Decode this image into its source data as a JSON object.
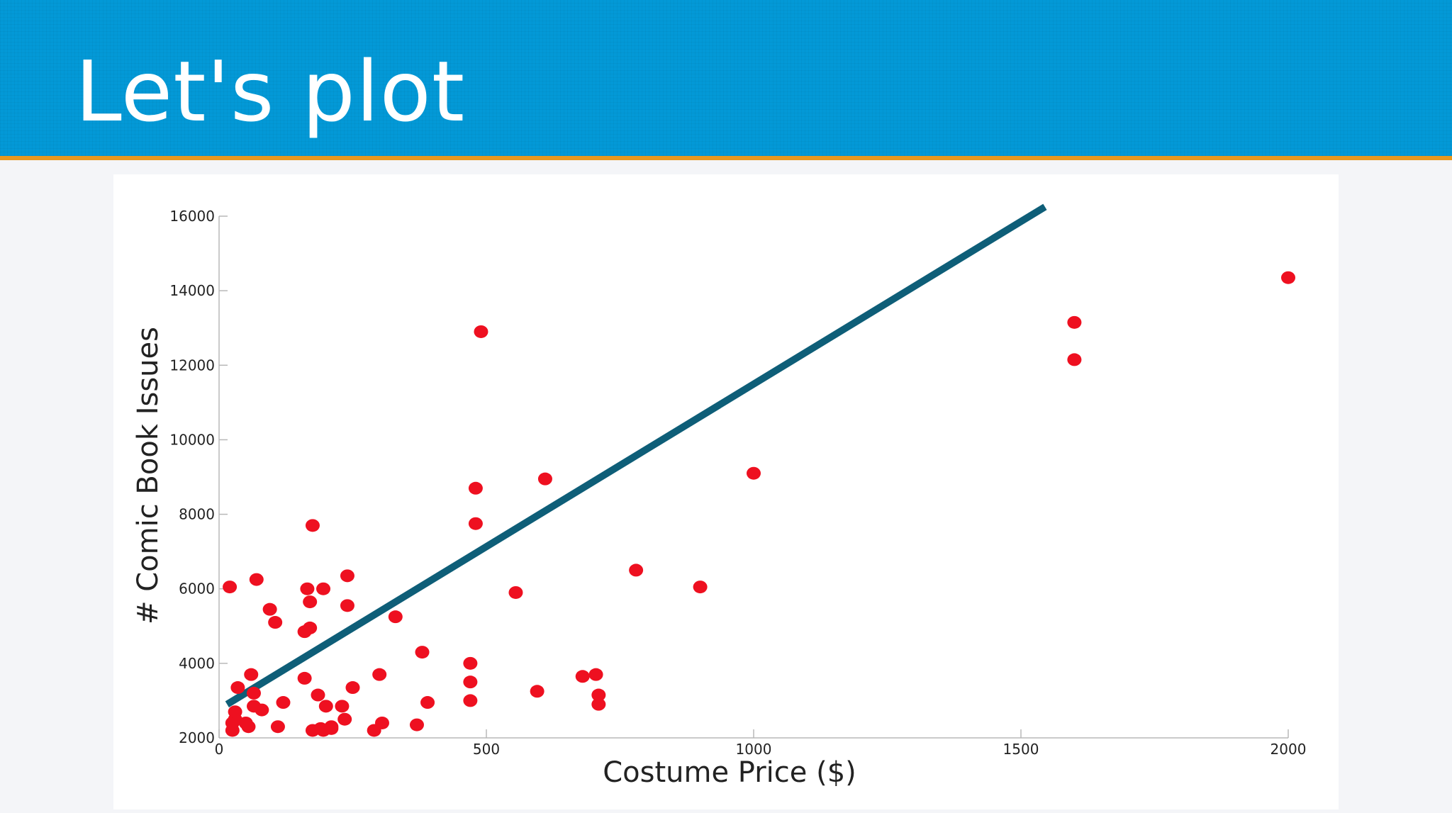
{
  "slide": {
    "title": "Let's plot"
  },
  "colors": {
    "header_bg": "#0399d7",
    "header_rule": "#e8981e",
    "point": "#ee1020",
    "fit_line": "#0e5e78"
  },
  "chart_data": {
    "type": "scatter",
    "xlabel": "Costume Price ($)",
    "ylabel": "# Comic Book Issues",
    "xlim": [
      0,
      2000
    ],
    "ylim": [
      2000,
      16000
    ],
    "xticks": [
      0,
      500,
      1000,
      1500,
      2000
    ],
    "yticks": [
      2000,
      4000,
      6000,
      8000,
      10000,
      12000,
      14000,
      16000
    ],
    "grid": false,
    "series": [
      {
        "type": "scatter",
        "x": [
          20,
          25,
          25,
          30,
          30,
          35,
          55,
          50,
          60,
          65,
          65,
          70,
          80,
          95,
          105,
          110,
          120,
          160,
          160,
          165,
          170,
          170,
          175,
          175,
          185,
          190,
          195,
          195,
          200,
          210,
          210,
          230,
          235,
          240,
          240,
          250,
          290,
          300,
          305,
          330,
          370,
          380,
          390,
          470,
          470,
          470,
          480,
          480,
          490,
          555,
          595,
          610,
          680,
          705,
          710,
          710,
          780,
          900,
          1000,
          1600,
          1600,
          2000
        ],
        "y": [
          6050,
          2200,
          2400,
          2500,
          2700,
          3350,
          2300,
          2400,
          3700,
          3200,
          2850,
          6250,
          2750,
          5450,
          5100,
          2300,
          2950,
          4850,
          3600,
          6000,
          5650,
          4950,
          2200,
          7700,
          3150,
          2250,
          2200,
          6000,
          2850,
          2300,
          2250,
          2850,
          2500,
          5550,
          6350,
          3350,
          2200,
          3700,
          2400,
          5250,
          2350,
          4300,
          2950,
          4000,
          3500,
          3000,
          8700,
          7750,
          12900,
          5900,
          3250,
          8950,
          3650,
          3700,
          3150,
          2900,
          6500,
          6050,
          9100,
          13150,
          12150,
          14350
        ]
      },
      {
        "type": "line",
        "x": [
          15,
          1545
        ],
        "y": [
          2900,
          16250
        ]
      }
    ]
  }
}
